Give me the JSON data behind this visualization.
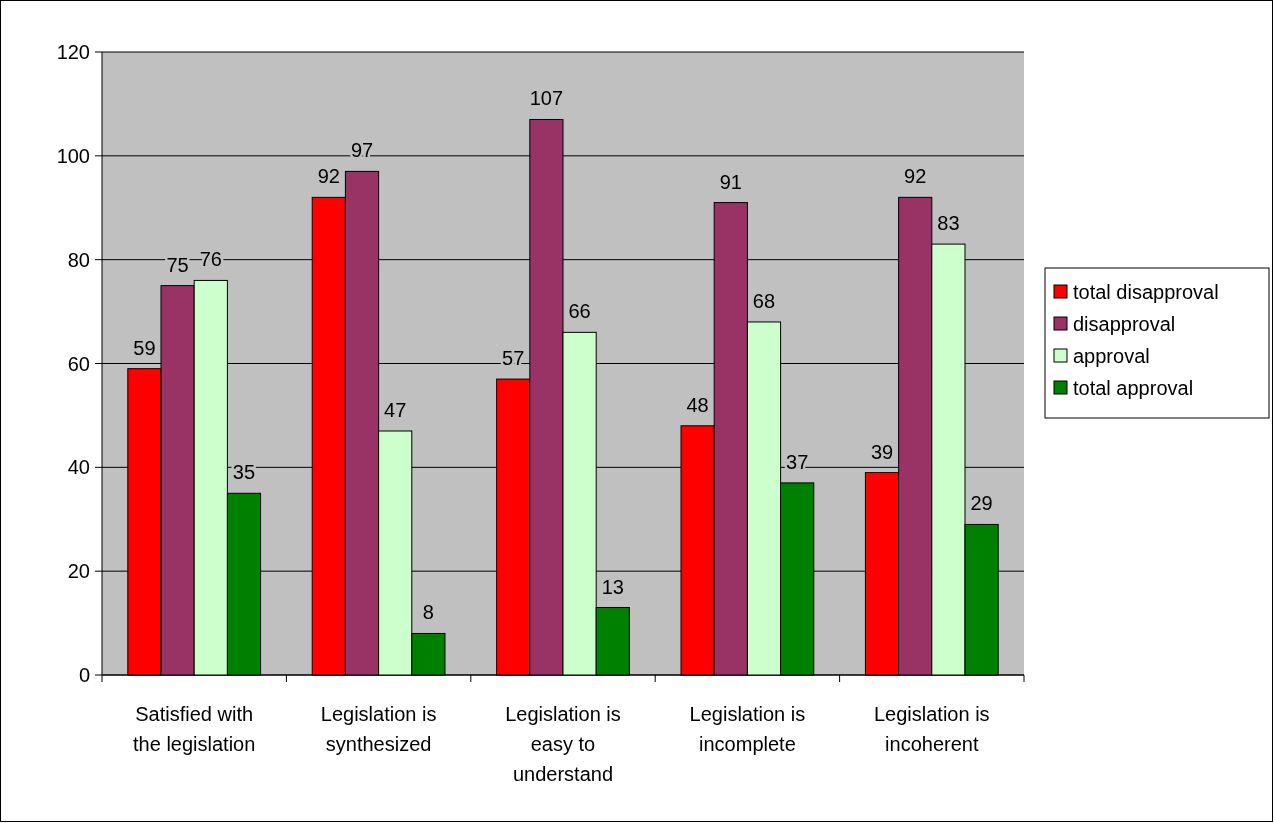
{
  "chart_data": {
    "type": "bar",
    "categories": [
      "Satisfied with the legislation",
      "Legislation is synthesized",
      "Legislation is easy to understand",
      "Legislation is incomplete",
      "Legislation is incoherent"
    ],
    "series": [
      {
        "name": "total disapproval",
        "color": "#ff0000",
        "values": [
          59,
          92,
          57,
          48,
          39
        ]
      },
      {
        "name": "disapproval",
        "color": "#993366",
        "values": [
          75,
          97,
          107,
          91,
          92
        ]
      },
      {
        "name": "approval",
        "color": "#ccffcc",
        "values": [
          76,
          47,
          66,
          68,
          83
        ]
      },
      {
        "name": "total approval",
        "color": "#008000",
        "values": [
          35,
          8,
          13,
          37,
          29
        ]
      }
    ],
    "ylim": [
      0,
      120
    ],
    "yticks": [
      0,
      20,
      40,
      60,
      80,
      100,
      120
    ],
    "grid": "y",
    "legend": "right",
    "data_labels": true
  }
}
